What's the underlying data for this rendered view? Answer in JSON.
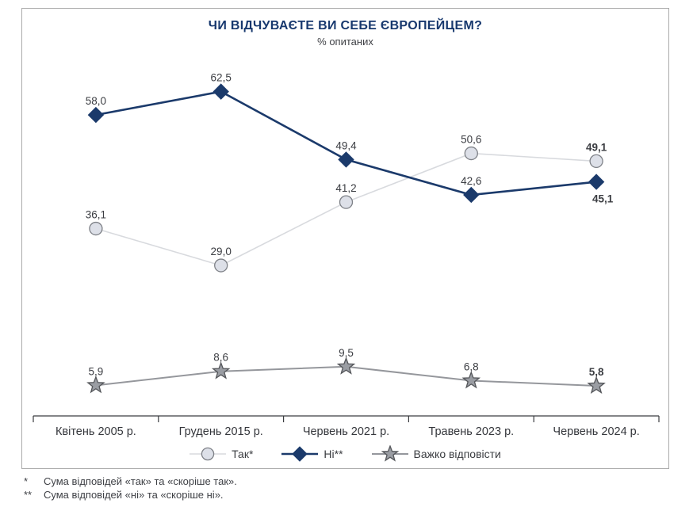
{
  "chart_data": {
    "type": "line",
    "title": "ЧИ ВІДЧУВАЄТЕ ВИ СЕБЕ ЄВРОПЕЙЦЕМ?",
    "subtitle": "% опитаних",
    "categories": [
      "Квітень 2005 р.",
      "Грудень 2015 р.",
      "Червень 2021 р.",
      "Травень 2023 р.",
      "Червень 2024 р."
    ],
    "series": [
      {
        "key": "tak",
        "name": "Так*",
        "marker": "circle",
        "values": [
          36.1,
          29.0,
          41.2,
          50.6,
          49.1
        ],
        "labels": [
          "36,1",
          "29,0",
          "41,2",
          "50,6",
          "49,1"
        ],
        "line_color": "#d8dade",
        "marker_fill": "#dde0e8",
        "marker_stroke": "#7e8187",
        "line_width": 1.6
      },
      {
        "key": "ni",
        "name": "Ні**",
        "marker": "diamond",
        "values": [
          58.0,
          62.5,
          49.4,
          42.6,
          45.1
        ],
        "labels": [
          "58,0",
          "62,5",
          "49,4",
          "42,6",
          "45,1"
        ],
        "line_color": "#1b3a6b",
        "marker_fill": "#1b3a6b",
        "marker_stroke": "#1b3a6b",
        "line_width": 2.6
      },
      {
        "key": "vazhko",
        "name": "Важко відповісти",
        "marker": "star",
        "values": [
          5.9,
          8.6,
          9.5,
          6.8,
          5.8
        ],
        "labels": [
          "5,9",
          "8,6",
          "9,5",
          "6,8",
          "5,8"
        ],
        "line_color": "#95979c",
        "marker_fill": "#9a9da3",
        "marker_stroke": "#54565a",
        "line_width": 2
      }
    ],
    "ylim": [
      0,
      70
    ],
    "grid": false,
    "legend_position": "bottom",
    "label_color": "#3b3d42",
    "axis_color": "#3a3c40",
    "last_labels_bold": true
  },
  "footnotes": [
    {
      "marker": "*",
      "text": "Сума відповідей «так» та «скоріше так»."
    },
    {
      "marker": "**",
      "text": "Сума відповідей «ні» та «скоріше ні»."
    }
  ],
  "colors": {
    "navy": "#17386e",
    "border": "#ababab",
    "text": "#3f4146"
  }
}
